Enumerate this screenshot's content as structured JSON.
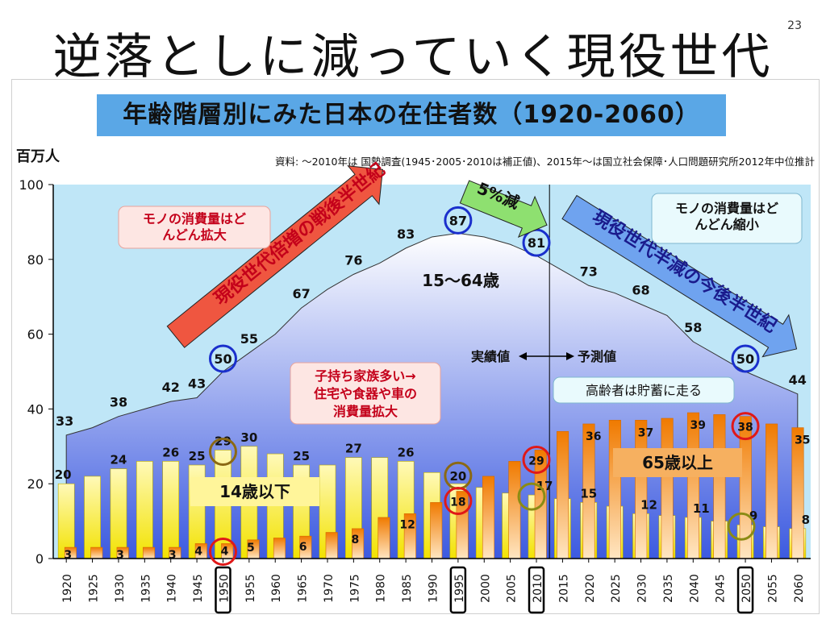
{
  "slide": {
    "title": "逆落としに減っていく現役世代",
    "page_number": "23"
  },
  "chart_data": {
    "type": "bar",
    "title": "年齢階層別にみた日本の在住者数（1920-2060）",
    "unit_label": "百万人",
    "source_note": "資料: ～2010年は 国勢調査(1945･2005･2010は補正値)、2015年～は国立社会保障･人口問題研究所2012年中位推計",
    "ylim": [
      0,
      100
    ],
    "yticks": [
      0,
      20,
      40,
      60,
      80,
      100
    ],
    "categories": [
      "1920",
      "1925",
      "1930",
      "1935",
      "1940",
      "1945",
      "1950",
      "1955",
      "1960",
      "1965",
      "1970",
      "1975",
      "1980",
      "1985",
      "1990",
      "1995",
      "2000",
      "2005",
      "2010",
      "2015",
      "2020",
      "2025",
      "2030",
      "2035",
      "2040",
      "2045",
      "2050",
      "2055",
      "2060"
    ],
    "highlighted_years": [
      "1950",
      "1995",
      "2010",
      "2050"
    ],
    "series": [
      {
        "name": "15～64歳",
        "kind": "area",
        "values": [
          33,
          35,
          38,
          40,
          42,
          43,
          50,
          55,
          60,
          67,
          72,
          76,
          79,
          83,
          86,
          87,
          86,
          84,
          81,
          77,
          73,
          71,
          68,
          65,
          58,
          54,
          50,
          47,
          44
        ],
        "labels": {
          "1920": "33",
          "1930": "38",
          "1940": "42",
          "1945": "43",
          "1950": "50",
          "1955": "55",
          "1965": "67",
          "1975": "76",
          "1985": "83",
          "1995": "87",
          "2010": "81",
          "2020": "73",
          "2030": "68",
          "2040": "58",
          "2050": "50",
          "2060": "44"
        }
      },
      {
        "name": "14歳以下",
        "kind": "bar",
        "values": [
          20,
          22,
          24,
          26,
          26,
          25,
          29,
          30,
          28,
          25,
          25,
          27,
          27,
          26,
          23,
          20,
          19,
          17.5,
          17,
          16,
          15,
          14,
          12,
          11.5,
          11,
          10,
          9,
          8.5,
          8
        ],
        "labels": {
          "1920": "20",
          "1930": "24",
          "1940": "26",
          "1945": "25",
          "1950": "29",
          "1955": "30",
          "1965": "25",
          "1975": "27",
          "1985": "26",
          "1995": "20",
          "2010": "17",
          "2020": "15",
          "2030": "12",
          "2040": "11",
          "2050": "9",
          "2060": "8"
        }
      },
      {
        "name": "65歳以上",
        "kind": "bar",
        "values": [
          3,
          3,
          3,
          3,
          3,
          4,
          4,
          5,
          5.5,
          6,
          7,
          8,
          11,
          12,
          15,
          18,
          22,
          26,
          29,
          34,
          36,
          37,
          37,
          37.5,
          39,
          38.5,
          38,
          36,
          35
        ],
        "labels": {
          "1920": "3",
          "1930": "3",
          "1940": "3",
          "1945": "4",
          "1950": "4",
          "1955": "5",
          "1965": "6",
          "1975": "8",
          "1985": "12",
          "1995": "18",
          "2010": "29",
          "2020": "36",
          "2030": "37",
          "2040": "39",
          "2050": "38",
          "2060": "35"
        }
      }
    ],
    "circled_values": [
      {
        "series": "15～64歳",
        "year": "1950",
        "color": "#1a2fcc"
      },
      {
        "series": "15～64歳",
        "year": "1995",
        "color": "#1a2fcc"
      },
      {
        "series": "15～64歳",
        "year": "2010",
        "color": "#1a2fcc"
      },
      {
        "series": "15～64歳",
        "year": "2050",
        "color": "#1a2fcc"
      },
      {
        "series": "14歳以下",
        "year": "1950",
        "color": "#8b6914"
      },
      {
        "series": "14歳以下",
        "year": "1995",
        "color": "#8b6914"
      },
      {
        "series": "14歳以下",
        "year": "2010",
        "color": "#8b8b14"
      },
      {
        "series": "14歳以下",
        "year": "2050",
        "color": "#8b8b14"
      },
      {
        "series": "65歳以上",
        "year": "1950",
        "color": "#e01818"
      },
      {
        "series": "65歳以上",
        "year": "1995",
        "color": "#e01818"
      },
      {
        "series": "65歳以上",
        "year": "2010",
        "color": "#e01818"
      },
      {
        "series": "65歳以上",
        "year": "2050",
        "color": "#e01818"
      }
    ],
    "divider_year": "2010",
    "annotations": {
      "actual_label": "実績値",
      "forecast_label": "予測値",
      "arrow_postwar": "現役世代倍増の戦後半世紀",
      "arrow_decline5": "5%減",
      "arrow_future": "現役世代半減の今後半世紀",
      "callout_consumption_up": "モノの消費量はど\nんどん拡大",
      "callout_family": "子持ち家族多い→\n住宅や食器や車の\n消費量拡大",
      "callout_consumption_down": "モノの消費量はど\nんどん縮小",
      "callout_elderly": "高齢者は貯蓄に走る",
      "label_working": "15～64歳",
      "label_children": "14歳以下",
      "label_elderly": "65歳以上"
    },
    "colors": {
      "plot_bg": "#bfe6f7",
      "area_top": "#ffffff",
      "area_bottom": "#3c5ae0",
      "child_bar_top": "#fff9b8",
      "child_bar_bottom": "#f2e200",
      "elder_bar_top": "#f07a00",
      "elder_bar_bottom": "#ffe6c2",
      "arrow_red": "#ef5640",
      "arrow_green": "#8ee070",
      "arrow_blue": "#6fa3ef"
    }
  }
}
